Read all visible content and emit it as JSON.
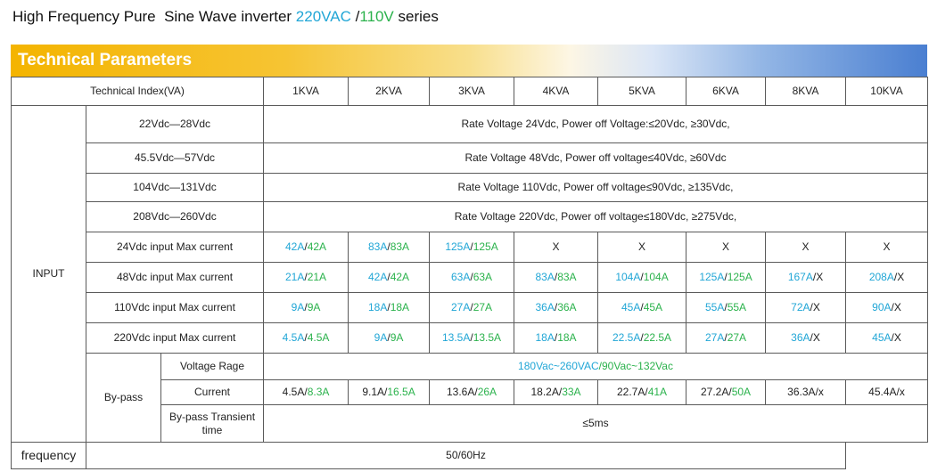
{
  "title": {
    "prefix": "High Frequency Pure  Sine Wave inverter ",
    "v220": "220VAC",
    "slash": " /",
    "v110": "110V",
    "suffix": " series"
  },
  "banner": "Technical Parameters",
  "header": {
    "index": "Technical Index(VA)",
    "models": [
      "1KVA",
      "2KVA",
      "3KVA",
      "4KVA",
      "5KVA",
      "6KVA",
      "8KVA",
      "10KVA"
    ]
  },
  "input": {
    "group": "INPUT",
    "voltage_rows": [
      {
        "label": "22Vdc—28Vdc",
        "value": "Rate Voltage 24Vdc, Power off Voltage:≤20Vdc, ≥30Vdc,"
      },
      {
        "label": "45.5Vdc—57Vdc",
        "value": "Rate Voltage 48Vdc, Power off voltage≤40Vdc, ≥60Vdc"
      },
      {
        "label": "104Vdc—131Vdc",
        "value": "Rate Voltage 110Vdc, Power off voltage≤90Vdc, ≥135Vdc,"
      },
      {
        "label": "208Vdc—260Vdc",
        "value": "Rate Voltage 220Vdc, Power off voltage≤180Vdc, ≥275Vdc,"
      }
    ],
    "current_rows": [
      {
        "label": "24Vdc input Max current",
        "cells": [
          [
            "42A",
            "42A"
          ],
          [
            "83A",
            "83A"
          ],
          [
            "125A",
            "125A"
          ],
          [
            "X"
          ],
          [
            "X"
          ],
          [
            "X"
          ],
          [
            "X"
          ],
          [
            "X"
          ]
        ]
      },
      {
        "label": "48Vdc input Max current",
        "cells": [
          [
            "21A",
            "21A"
          ],
          [
            "42A",
            "42A"
          ],
          [
            "63A",
            "63A"
          ],
          [
            "83A",
            "83A"
          ],
          [
            "104A",
            "104A"
          ],
          [
            "125A",
            "125A"
          ],
          [
            "167A",
            "X"
          ],
          [
            "208A",
            "X"
          ]
        ]
      },
      {
        "label": "110Vdc input Max current",
        "cells": [
          [
            "9A",
            "9A"
          ],
          [
            "18A",
            "18A"
          ],
          [
            "27A",
            "27A"
          ],
          [
            "36A",
            "36A"
          ],
          [
            "45A",
            "45A"
          ],
          [
            "55A",
            "55A"
          ],
          [
            "72A",
            "X"
          ],
          [
            "90A",
            "X"
          ]
        ]
      },
      {
        "label": "220Vdc input Max current",
        "cells": [
          [
            "4.5A",
            "4.5A"
          ],
          [
            "9A",
            "9A"
          ],
          [
            "13.5A",
            "13.5A"
          ],
          [
            "18A",
            "18A"
          ],
          [
            "22.5A",
            "22.5A"
          ],
          [
            "27A",
            "27A"
          ],
          [
            "36A",
            "X"
          ],
          [
            "45A",
            "X"
          ]
        ]
      }
    ],
    "bypass": {
      "group": "By-pass",
      "voltage_label": "Voltage Rage",
      "voltage_value_220": "180Vac~260VAC",
      "voltage_value_110": "/90Vac~132Vac",
      "current_label": "Current",
      "current_cells": [
        [
          "4.5A/",
          "8.3A"
        ],
        [
          "9.1A/",
          "16.5A"
        ],
        [
          "13.6A/",
          "26A"
        ],
        [
          "18.2A/",
          "33A"
        ],
        [
          "22.7A/",
          "41A"
        ],
        [
          "27.2A/",
          "50A"
        ],
        [
          "36.3A/x",
          ""
        ],
        [
          "45.4A/x",
          ""
        ]
      ],
      "transient_label": "By-pass Transient time",
      "transient_value": "≤5ms"
    },
    "frequency_label": "frequency",
    "frequency_value": "50/60Hz"
  },
  "colors": {
    "v220": "#21a6d6",
    "v110": "#2bb24c",
    "banner_start": "#f4b400",
    "banner_end": "#4a7fd1"
  }
}
